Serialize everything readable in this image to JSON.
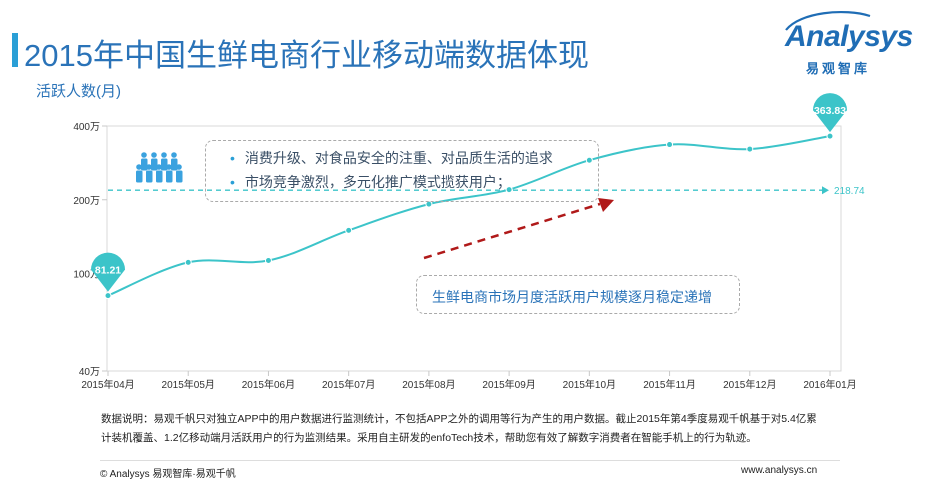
{
  "header": {
    "title": "2015年中国生鲜电商行业移动端数据体现",
    "logo_name": "Analysys",
    "logo_sub": "易观智库"
  },
  "colors": {
    "line": "#3cc4c9",
    "accent": "#2a73b8",
    "arrow": "#b01919",
    "avg": "#3cc4c9"
  },
  "callouts": {
    "bullets": [
      "消费升级、对食品安全的注重、对品质生活的追求",
      "市场竞争激烈，多元化推广模式揽获用户；"
    ],
    "trend": "生鲜电商市场月度活跃用户规模逐月稳定递增",
    "people_icon": "people-group-icon"
  },
  "chart_data": {
    "type": "line",
    "title": "",
    "xlabel": "",
    "ylabel": "活跃人数(月)",
    "y_scale": "log",
    "ylim": [
      40,
      400
    ],
    "y_ticks": [
      40,
      100,
      200,
      400
    ],
    "y_tick_labels": [
      "40万",
      "100万",
      "200万",
      "400万"
    ],
    "categories": [
      "2015年04月",
      "2015年05月",
      "2015年06月",
      "2015年07月",
      "2015年08月",
      "2015年09月",
      "2015年10月",
      "2015年11月",
      "2015年12月",
      "2016年01月"
    ],
    "series": [
      {
        "values": [
          81.21,
          111,
          113,
          150,
          192,
          220,
          290,
          336,
          322,
          363.83
        ]
      }
    ],
    "average_line": {
      "value": 218.74,
      "label": "218.74"
    },
    "point_labels": [
      {
        "index": 0,
        "text": "81.21"
      },
      {
        "index": 9,
        "text": "363.83"
      }
    ]
  },
  "notes": {
    "line1": "数据说明：易观千帆只对独立APP中的用户数据进行监测统计，不包括APP之外的调用等行为产生的用户数据。截止2015年第4季度易观千帆基于对5.4亿累",
    "line2": "计装机覆盖、1.2亿移动端月活跃用户的行为监测结果。采用自主研发的enfoTech技术，帮助您有效了解数字消费者在智能手机上的行为轨迹。"
  },
  "footer": {
    "copyright": "© Analysys 易观智库·易观千帆",
    "website": "www.analysys.cn"
  }
}
